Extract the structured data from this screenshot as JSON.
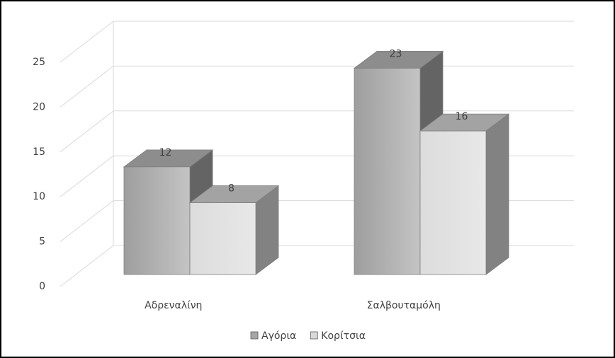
{
  "chart_data": {
    "type": "bar3d",
    "categories": [
      "Αδρεναλίνη",
      "Σαλβουταμόλη"
    ],
    "series": [
      {
        "name": "Αγόρια",
        "color": "#a6a6a6",
        "values": [
          12,
          23
        ]
      },
      {
        "name": "Κορίτσια",
        "color": "#d9d9d9",
        "values": [
          8,
          16
        ]
      }
    ],
    "ylim": [
      0,
      25
    ],
    "yticks": [
      0,
      5,
      10,
      15,
      20,
      25
    ],
    "grid": true,
    "legend": "bottom"
  }
}
